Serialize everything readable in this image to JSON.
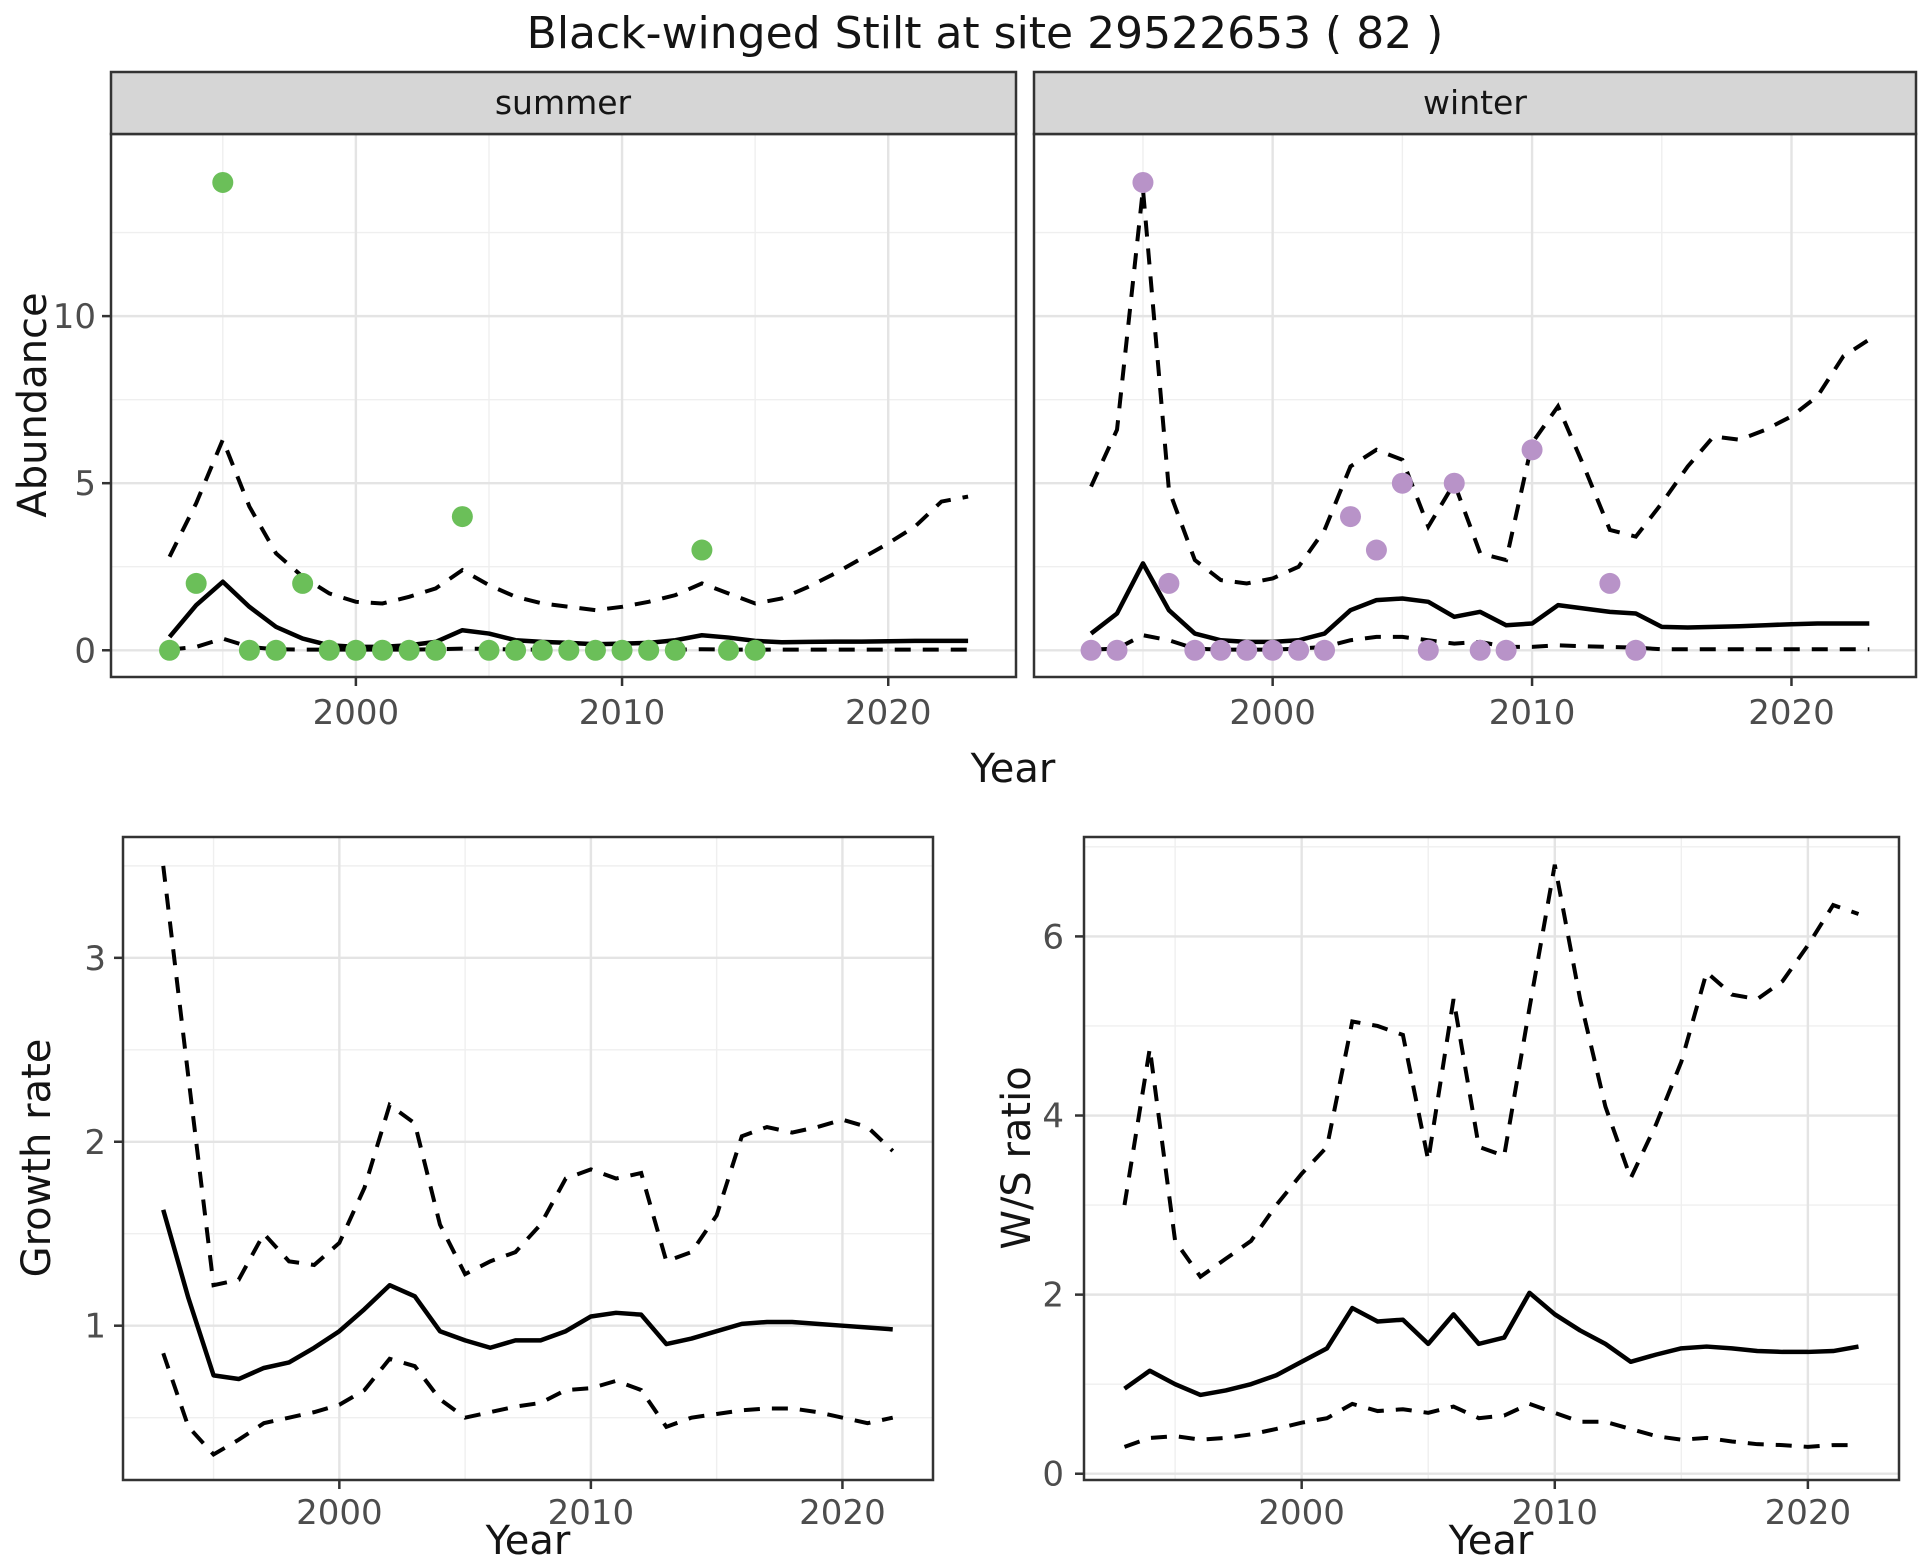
{
  "title": "Black-winged Stilt at site 29522653 ( 82 )",
  "axis": {
    "x_label": "Year",
    "abundance_label": "Abundance",
    "growth_label": "Growth rate",
    "ws_label": "W/S ratio"
  },
  "facets": {
    "summer": "summer",
    "winter": "winter"
  },
  "colors": {
    "summer_point": "#6bbf59",
    "winter_point": "#b893c8",
    "line": "#000000",
    "strip_bg": "#d6d6d6",
    "panel_border": "#333333",
    "grid_major": "#e4e4e4",
    "grid_minor": "#efefef",
    "tick_label": "#4d4d4d",
    "background": "#ffffff"
  },
  "chart_data": [
    {
      "id": "abundance_summer",
      "type": "scatter",
      "facet": "summer",
      "title": "",
      "xlabel": "Year",
      "ylabel": "Abundance",
      "xlim": [
        1990.8,
        2024.8
      ],
      "ylim": [
        -0.8,
        15.45
      ],
      "x_ticks": [
        2000,
        2010,
        2020
      ],
      "x_minor": [
        1995,
        2005,
        2015
      ],
      "y_ticks": [
        0,
        5,
        10
      ],
      "y_minor": [
        2.5,
        7.5,
        12.5
      ],
      "points": {
        "color_key": "summer_point",
        "years": [
          1993,
          1994,
          1995,
          1996,
          1997,
          1998,
          1999,
          2000,
          2001,
          2002,
          2003,
          2004,
          2005,
          2006,
          2007,
          2008,
          2009,
          2010,
          2011,
          2012,
          2013,
          2014,
          2015
        ],
        "values": [
          0,
          2,
          14,
          0,
          0,
          2,
          0,
          0,
          0,
          0,
          0,
          4,
          0,
          0,
          0,
          0,
          0,
          0,
          0,
          0,
          3,
          0,
          0
        ]
      },
      "lines": {
        "years": [
          1993,
          1994,
          1995,
          1996,
          1997,
          1998,
          1999,
          2000,
          2001,
          2002,
          2003,
          2004,
          2005,
          2006,
          2007,
          2008,
          2009,
          2010,
          2011,
          2012,
          2013,
          2014,
          2015,
          2016,
          2017,
          2018,
          2019,
          2020,
          2021,
          2022,
          2023
        ],
        "mean": [
          0.4,
          1.35,
          2.05,
          1.3,
          0.7,
          0.35,
          0.15,
          0.1,
          0.1,
          0.15,
          0.25,
          0.6,
          0.5,
          0.3,
          0.25,
          0.22,
          0.18,
          0.2,
          0.22,
          0.3,
          0.45,
          0.38,
          0.28,
          0.24,
          0.25,
          0.26,
          0.26,
          0.27,
          0.28,
          0.28,
          0.28
        ],
        "upper_ci": [
          2.8,
          4.4,
          6.3,
          4.3,
          2.9,
          2.2,
          1.7,
          1.45,
          1.4,
          1.6,
          1.85,
          2.4,
          1.95,
          1.6,
          1.4,
          1.3,
          1.2,
          1.3,
          1.45,
          1.65,
          2.0,
          1.7,
          1.4,
          1.55,
          1.9,
          2.3,
          2.75,
          3.2,
          3.7,
          4.45,
          4.6
        ],
        "lower_ci": [
          0.02,
          0.1,
          0.35,
          0.1,
          0.03,
          0.02,
          0.02,
          0.02,
          0.02,
          0.02,
          0.03,
          0.05,
          0.04,
          0.02,
          0.02,
          0.02,
          0.02,
          0.02,
          0.02,
          0.02,
          0.03,
          0.02,
          0.02,
          0.02,
          0.02,
          0.02,
          0.02,
          0.02,
          0.02,
          0.02,
          0.02
        ]
      }
    },
    {
      "id": "abundance_winter",
      "type": "scatter",
      "facet": "winter",
      "title": "",
      "xlabel": "Year",
      "ylabel": "Abundance",
      "xlim": [
        1990.8,
        2024.8
      ],
      "ylim": [
        -0.8,
        15.45
      ],
      "x_ticks": [
        2000,
        2010,
        2020
      ],
      "x_minor": [
        1995,
        2005,
        2015
      ],
      "y_ticks": [
        0,
        5,
        10
      ],
      "y_minor": [
        2.5,
        7.5,
        12.5
      ],
      "points": {
        "color_key": "winter_point",
        "years": [
          1993,
          1994,
          1995,
          1996,
          1997,
          1998,
          1999,
          2000,
          2001,
          2002,
          2003,
          2004,
          2005,
          2006,
          2007,
          2008,
          2009,
          2010,
          2013,
          2014
        ],
        "values": [
          0,
          0,
          14,
          2,
          0,
          0,
          0,
          0,
          0,
          0,
          4,
          3,
          5,
          0,
          5,
          0,
          0,
          6,
          2,
          0
        ]
      },
      "lines": {
        "years": [
          1993,
          1994,
          1995,
          1996,
          1997,
          1998,
          1999,
          2000,
          2001,
          2002,
          2003,
          2004,
          2005,
          2006,
          2007,
          2008,
          2009,
          2010,
          2011,
          2012,
          2013,
          2014,
          2015,
          2016,
          2017,
          2018,
          2019,
          2020,
          2021,
          2022,
          2023
        ],
        "mean": [
          0.5,
          1.1,
          2.6,
          1.2,
          0.5,
          0.3,
          0.25,
          0.25,
          0.3,
          0.5,
          1.2,
          1.5,
          1.55,
          1.45,
          1.0,
          1.15,
          0.75,
          0.8,
          1.35,
          1.25,
          1.15,
          1.1,
          0.7,
          0.68,
          0.7,
          0.72,
          0.75,
          0.78,
          0.8,
          0.8,
          0.8
        ],
        "upper_ci": [
          4.9,
          6.6,
          13.8,
          4.8,
          2.7,
          2.1,
          2.0,
          2.15,
          2.5,
          3.6,
          5.5,
          6.0,
          5.7,
          3.7,
          5.0,
          2.9,
          2.7,
          6.2,
          7.3,
          5.5,
          3.6,
          3.4,
          4.4,
          5.5,
          6.4,
          6.3,
          6.6,
          7.0,
          7.6,
          8.8,
          9.3
        ],
        "lower_ci": [
          0.02,
          0.05,
          0.45,
          0.3,
          0.05,
          0.02,
          0.02,
          0.02,
          0.05,
          0.1,
          0.3,
          0.4,
          0.4,
          0.3,
          0.2,
          0.25,
          0.1,
          0.1,
          0.15,
          0.12,
          0.1,
          0.08,
          0.03,
          0.03,
          0.03,
          0.03,
          0.03,
          0.03,
          0.03,
          0.03,
          0.03
        ]
      }
    },
    {
      "id": "growth_rate",
      "type": "line",
      "facet": "",
      "title": "",
      "xlabel": "Year",
      "ylabel": "Growth rate",
      "xlim": [
        1991.4,
        2023.6
      ],
      "ylim": [
        0.161,
        3.657
      ],
      "x_ticks": [
        2000,
        2010,
        2020
      ],
      "x_minor": [
        1995,
        2005,
        2015
      ],
      "y_ticks": [
        1,
        2,
        3
      ],
      "y_minor": [
        0.5,
        1.5,
        2.5,
        3.5
      ],
      "lines": {
        "years": [
          1993,
          1994,
          1995,
          1996,
          1997,
          1998,
          1999,
          2000,
          2001,
          2002,
          2003,
          2004,
          2005,
          2006,
          2007,
          2008,
          2009,
          2010,
          2011,
          2012,
          2013,
          2014,
          2015,
          2016,
          2017,
          2018,
          2019,
          2020,
          2021,
          2022
        ],
        "mean": [
          1.63,
          1.15,
          0.73,
          0.71,
          0.77,
          0.8,
          0.88,
          0.97,
          1.09,
          1.22,
          1.16,
          0.97,
          0.92,
          0.88,
          0.92,
          0.92,
          0.97,
          1.05,
          1.07,
          1.06,
          0.9,
          0.93,
          0.97,
          1.01,
          1.02,
          1.02,
          1.01,
          1.0,
          0.99,
          0.98
        ],
        "upper_ci": [
          3.5,
          2.35,
          1.22,
          1.25,
          1.5,
          1.35,
          1.33,
          1.45,
          1.75,
          2.2,
          2.1,
          1.55,
          1.28,
          1.35,
          1.4,
          1.55,
          1.8,
          1.85,
          1.8,
          1.83,
          1.35,
          1.4,
          1.6,
          2.03,
          2.08,
          2.05,
          2.08,
          2.12,
          2.08,
          1.95
        ],
        "lower_ci": [
          0.85,
          0.45,
          0.3,
          0.38,
          0.47,
          0.5,
          0.53,
          0.57,
          0.65,
          0.82,
          0.78,
          0.6,
          0.5,
          0.53,
          0.56,
          0.58,
          0.65,
          0.66,
          0.7,
          0.65,
          0.45,
          0.5,
          0.52,
          0.54,
          0.55,
          0.55,
          0.53,
          0.5,
          0.47,
          0.5
        ]
      }
    },
    {
      "id": "ws_ratio",
      "type": "line",
      "facet": "",
      "title": "",
      "xlabel": "Year",
      "ylabel": "W/S ratio",
      "xlim": [
        1991.4,
        2023.6
      ],
      "ylim": [
        -0.07,
        7.11
      ],
      "x_ticks": [
        2000,
        2010,
        2020
      ],
      "x_minor": [
        1995,
        2005,
        2015
      ],
      "y_ticks": [
        0,
        2,
        4,
        6
      ],
      "y_minor": [
        1,
        3,
        5,
        7
      ],
      "lines": {
        "years": [
          1993,
          1994,
          1995,
          1996,
          1997,
          1998,
          1999,
          2000,
          2001,
          2002,
          2003,
          2004,
          2005,
          2006,
          2007,
          2008,
          2009,
          2010,
          2011,
          2012,
          2013,
          2014,
          2015,
          2016,
          2017,
          2018,
          2019,
          2020,
          2021,
          2022
        ],
        "mean": [
          0.95,
          1.15,
          1.0,
          0.88,
          0.93,
          1.0,
          1.1,
          1.25,
          1.4,
          1.85,
          1.7,
          1.72,
          1.45,
          1.78,
          1.45,
          1.52,
          2.02,
          1.78,
          1.6,
          1.45,
          1.25,
          1.33,
          1.4,
          1.42,
          1.4,
          1.37,
          1.36,
          1.36,
          1.37,
          1.42
        ],
        "upper_ci": [
          3.0,
          4.75,
          2.6,
          2.2,
          2.4,
          2.6,
          3.0,
          3.35,
          3.65,
          5.05,
          5.0,
          4.9,
          3.5,
          5.3,
          3.65,
          3.55,
          5.2,
          6.8,
          5.3,
          4.1,
          3.3,
          3.9,
          4.6,
          5.6,
          5.35,
          5.3,
          5.5,
          5.9,
          6.35,
          6.25
        ],
        "lower_ci": [
          0.3,
          0.4,
          0.42,
          0.38,
          0.4,
          0.44,
          0.5,
          0.57,
          0.62,
          0.78,
          0.7,
          0.72,
          0.68,
          0.75,
          0.62,
          0.65,
          0.78,
          0.68,
          0.58,
          0.58,
          0.5,
          0.42,
          0.38,
          0.4,
          0.36,
          0.33,
          0.32,
          0.3,
          0.32,
          0.32
        ]
      }
    }
  ]
}
